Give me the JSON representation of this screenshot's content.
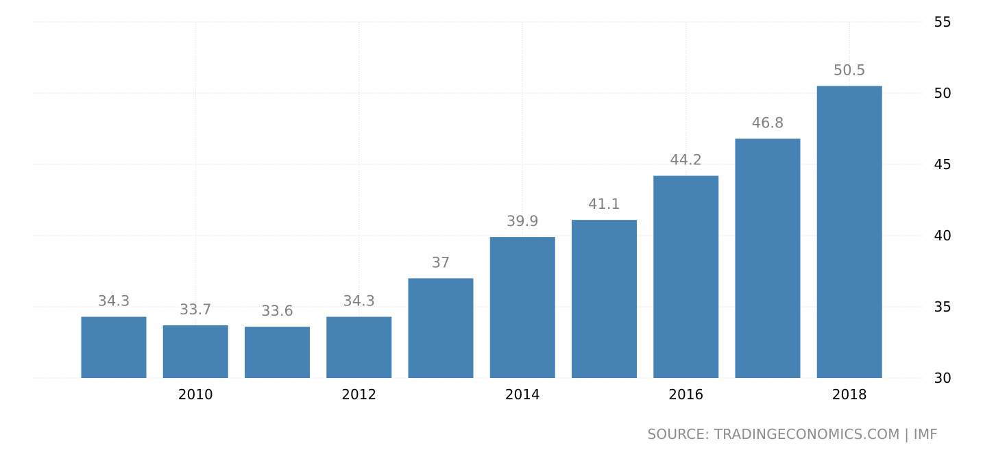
{
  "chart_data": {
    "type": "bar",
    "categories": [
      "2009",
      "2010",
      "2011",
      "2012",
      "2013",
      "2014",
      "2015",
      "2016",
      "2017",
      "2018"
    ],
    "values": [
      34.3,
      33.7,
      33.6,
      34.3,
      37,
      39.9,
      41.1,
      44.2,
      46.8,
      50.5
    ],
    "value_labels": [
      "34.3",
      "33.7",
      "33.6",
      "34.3",
      "37",
      "39.9",
      "41.1",
      "44.2",
      "46.8",
      "50.5"
    ],
    "x_tick_labels": [
      "2010",
      "2012",
      "2014",
      "2016",
      "2018"
    ],
    "y_tick_labels": [
      "30",
      "35",
      "40",
      "45",
      "50",
      "55"
    ],
    "y_ticks": [
      30,
      35,
      40,
      45,
      50,
      55
    ],
    "ylim": [
      30,
      55
    ],
    "y_axis_side": "right",
    "grid": true,
    "title": "",
    "xlabel": "",
    "ylabel": "",
    "colors": {
      "bar": "#4682b4",
      "data_label": "#808080",
      "grid": "#d9d9d9",
      "source_text": "#8c8c8c"
    }
  },
  "source_label": "SOURCE: TRADINGECONOMICS.COM | IMF"
}
